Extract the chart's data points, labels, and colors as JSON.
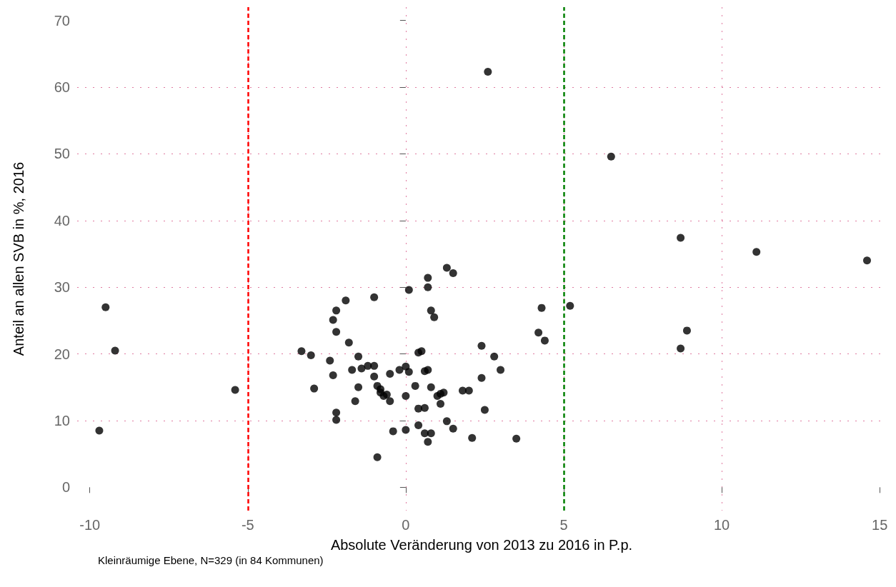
{
  "chart_data": {
    "type": "scatter",
    "xlabel": "Absolute Veränderung von 2013 zu 2016 in P.p.",
    "ylabel": "Anteil an allen SVB in %, 2016",
    "annotations": [
      "Kleinräumige Ebene, N=329 (in 84 Kommunen)"
    ],
    "series": [
      {
        "color": "#000000",
        "x": [
          -9.5,
          -9.2,
          -9.7,
          -5.4,
          -3.3,
          -3.0,
          -2.9,
          -2.4,
          -2.3,
          -2.3,
          -2.2,
          -2.2,
          -2.2,
          -2.2,
          -1.9,
          -1.8,
          -1.7,
          -1.6,
          -1.5,
          -1.5,
          -1.4,
          -1.2,
          -1.0,
          -1.0,
          -1.0,
          -0.9,
          -0.8,
          -0.8,
          -0.7,
          -0.6,
          -0.9,
          -0.5,
          -0.5,
          -0.4,
          -0.2,
          0.0,
          0.0,
          0.0,
          0.1,
          0.1,
          0.3,
          0.4,
          0.5,
          0.4,
          0.4,
          0.6,
          0.6,
          0.6,
          0.7,
          0.7,
          0.7,
          0.7,
          0.8,
          0.8,
          0.8,
          0.9,
          1.0,
          1.1,
          1.1,
          1.2,
          1.3,
          1.3,
          1.5,
          1.5,
          1.8,
          2.0,
          2.1,
          2.4,
          2.4,
          2.5,
          2.6,
          2.8,
          3.0,
          3.5,
          4.2,
          4.3,
          4.4,
          5.2,
          6.5,
          8.7,
          8.7,
          8.9,
          11.1,
          14.6
        ],
        "values": [
          27.0,
          20.5,
          8.5,
          14.6,
          20.4,
          19.8,
          14.8,
          19.0,
          16.8,
          25.1,
          26.5,
          23.3,
          11.2,
          10.1,
          28.0,
          21.7,
          17.6,
          12.9,
          19.6,
          15.0,
          17.8,
          18.2,
          28.5,
          18.2,
          16.6,
          15.2,
          14.7,
          14.2,
          13.7,
          13.9,
          4.5,
          12.9,
          17.0,
          8.4,
          17.6,
          18.1,
          13.7,
          8.6,
          17.3,
          29.6,
          15.2,
          20.2,
          20.4,
          11.8,
          9.3,
          17.4,
          11.9,
          8.1,
          17.6,
          30.0,
          31.4,
          6.8,
          8.1,
          26.5,
          15.0,
          25.5,
          13.7,
          14.0,
          12.5,
          14.2,
          9.9,
          32.9,
          32.1,
          8.8,
          14.5,
          14.5,
          7.4,
          21.2,
          16.4,
          11.6,
          62.3,
          19.6,
          17.6,
          7.3,
          23.2,
          26.9,
          22.0,
          27.2,
          49.6,
          37.4,
          20.8,
          23.5,
          35.3,
          34.0
        ]
      }
    ],
    "xlim": [
      -10.4,
      15.2
    ],
    "xticks": [
      -10,
      -5,
      0,
      5,
      10,
      15
    ],
    "ylim": [
      -3.5,
      72
    ],
    "yticks": [
      0,
      10,
      20,
      30,
      40,
      50,
      60,
      70
    ],
    "grid": true,
    "marker": "circle",
    "ref_lines": [
      {
        "axis": "x",
        "value": -5,
        "color": "#ff0000",
        "line_style": "dashed"
      },
      {
        "axis": "x",
        "value": 5,
        "color": "#008000",
        "line_style": "dashed"
      }
    ]
  }
}
